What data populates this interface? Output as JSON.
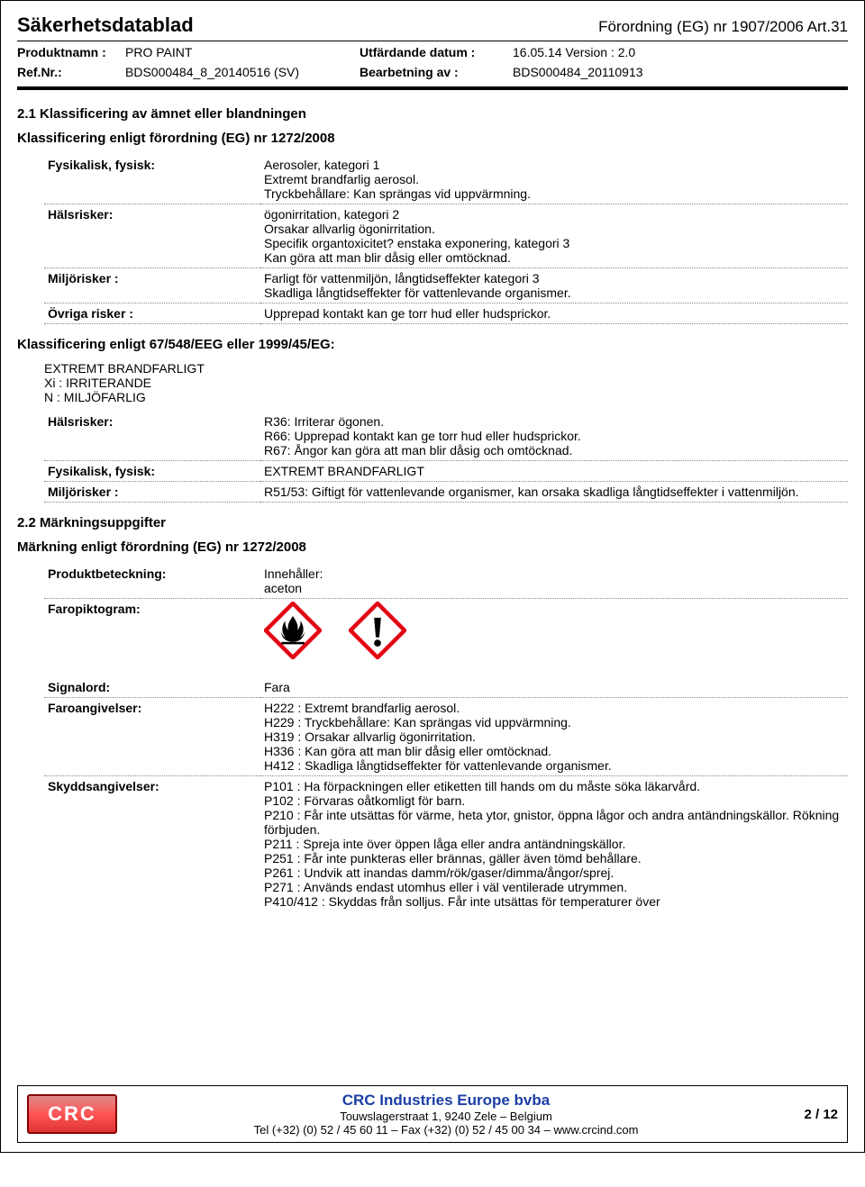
{
  "header": {
    "doc_title": "Säkerhetsdatablad",
    "regulation": "Förordning (EG) nr 1907/2006 Art.31",
    "meta": {
      "product_label": "Produktnamn :",
      "product": "PRO PAINT",
      "refnr_label": "Ref.Nr.:",
      "refnr": "BDS000484_8_20140516 (SV)",
      "issued_label": "Utfärdande datum :",
      "issued": "16.05.14 Version : 2.0",
      "processed_label": "Bearbetning av :",
      "processed": "BDS000484_20110913"
    }
  },
  "s21": {
    "title": "2.1 Klassificering av ämnet eller blandningen",
    "sub1": "Klassificering enligt förordning (EG) nr 1272/2008",
    "rows1": [
      {
        "k": "Fysikalisk, fysisk:",
        "v": "Aerosoler, kategori 1\nExtremt brandfarlig aerosol.\nTryckbehållare: Kan sprängas vid uppvärmning."
      },
      {
        "k": "Hälsrisker:",
        "v": "ögonirritation, kategori 2\nOrsakar allvarlig ögonirritation.\nSpecifik organtoxicitet? enstaka exponering, kategori 3\nKan göra att man blir dåsig eller omtöcknad."
      },
      {
        "k": "Miljörisker :",
        "v": "Farligt för vattenmiljön, långtidseffekter kategori 3\nSkadliga långtidseffekter för vattenlevande organismer."
      },
      {
        "k": "Övriga risker :",
        "v": "Upprepad kontakt kan ge torr hud eller hudsprickor."
      }
    ],
    "sub2": "Klassificering enligt 67/548/EEG eller 1999/45/EG:",
    "list2": [
      "EXTREMT BRANDFARLIGT",
      "Xi : IRRITERANDE",
      "N : MILJÖFARLIG"
    ],
    "rows2": [
      {
        "k": "Hälsrisker:",
        "v": "R36: Irriterar ögonen.\nR66: Upprepad kontakt kan ge torr hud eller hudsprickor.\nR67: Ångor kan göra att man blir dåsig och omtöcknad."
      },
      {
        "k": "Fysikalisk, fysisk:",
        "v": "EXTREMT BRANDFARLIGT"
      },
      {
        "k": "Miljörisker :",
        "v": "R51/53: Giftigt för vattenlevande organismer, kan orsaka skadliga långtidseffekter i vattenmiljön."
      }
    ]
  },
  "s22": {
    "title": "2.2 Märkningsuppgifter",
    "sub": "Märkning enligt förordning (EG) nr 1272/2008",
    "rows1": [
      {
        "k": "Produktbeteckning:",
        "v": "Innehåller:\naceton"
      },
      {
        "k": "Faropiktogram:",
        "v": ""
      }
    ],
    "pictograms": {
      "flame_color": "#e30613",
      "exclaim_color": "#000000",
      "border_color": "#e30613",
      "fill_color": "#ffffff",
      "size": 64
    },
    "rows2": [
      {
        "k": "Signalord:",
        "v": "Fara"
      },
      {
        "k": "Faroangivelser:",
        "v": "H222 : Extremt brandfarlig aerosol.\nH229 : Tryckbehållare: Kan sprängas vid uppvärmning.\nH319 : Orsakar allvarlig ögonirritation.\nH336 : Kan göra att man blir dåsig eller omtöcknad.\nH412 : Skadliga långtidseffekter för vattenlevande organismer."
      },
      {
        "k": "Skyddsangivelser:",
        "v": "P101 : Ha förpackningen eller etiketten till hands om du måste söka läkarvård.\nP102 : Förvaras oåtkomligt för barn.\nP210 : Får inte utsättas för värme, heta ytor, gnistor, öppna lågor och andra antändningskällor. Rökning förbjuden.\nP211 : Spreja inte över öppen låga eller andra antändningskällor.\nP251 : Får inte punkteras eller brännas, gäller även tömd behållare.\nP261 : Undvik att inandas damm/rök/gaser/dimma/ångor/sprej.\nP271 : Används endast utomhus eller i väl ventilerade utrymmen.\nP410/412 : Skyddas från solljus. Får inte utsättas för temperaturer över"
      }
    ]
  },
  "footer": {
    "logo_text": "CRC",
    "company": "CRC Industries Europe bvba",
    "addr": "Touwslagerstraat 1,  9240 Zele – Belgium",
    "tel": "Tel (+32) (0) 52 / 45 60 11 – Fax (+32) (0) 52 / 45 00 34 –  www.crcind.com",
    "page": "2 / 12"
  }
}
